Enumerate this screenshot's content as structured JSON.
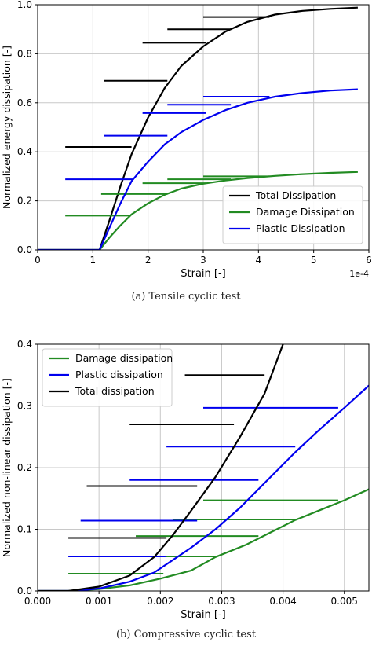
{
  "captions": [
    "(a) Tensile cyclic test",
    "(b) Compressive cyclic test"
  ],
  "chart_data": [
    {
      "type": "line",
      "xlabel": "Strain [-]",
      "ylabel": "Normalized energy dissipation [-]",
      "x_offset_label": "1e-4",
      "xlim": [
        0,
        6
      ],
      "ylim": [
        0,
        1.0
      ],
      "xticks": [
        "0",
        "1",
        "2",
        "3",
        "4",
        "5",
        "6"
      ],
      "yticks": [
        "0.0",
        "0.2",
        "0.4",
        "0.6",
        "0.8",
        "1.0"
      ],
      "legend_position": "lower-right",
      "grid": true,
      "series": [
        {
          "name": "Total Dissipation",
          "color": "#000000",
          "x": [
            0,
            1.12,
            1.3,
            1.5,
            1.7,
            2.0,
            2.3,
            2.6,
            3.0,
            3.4,
            3.8,
            4.3,
            4.8,
            5.3,
            5.8
          ],
          "y": [
            0,
            0,
            0.12,
            0.26,
            0.39,
            0.54,
            0.66,
            0.75,
            0.83,
            0.89,
            0.93,
            0.96,
            0.975,
            0.983,
            0.988
          ],
          "hlines": [
            {
              "y": 0.42,
              "x": [
                0.5,
                1.7
              ]
            },
            {
              "y": 0.69,
              "x": [
                1.2,
                2.35
              ]
            },
            {
              "y": 0.845,
              "x": [
                1.9,
                3.05
              ]
            },
            {
              "y": 0.9,
              "x": [
                2.35,
                3.5
              ]
            },
            {
              "y": 0.95,
              "x": [
                3.0,
                4.2
              ]
            }
          ]
        },
        {
          "name": "Damage Dissipation",
          "color": "#228b22",
          "x": [
            0,
            1.12,
            1.3,
            1.5,
            1.7,
            2.0,
            2.3,
            2.6,
            3.0,
            3.4,
            3.8,
            4.3,
            4.8,
            5.3,
            5.8
          ],
          "y": [
            0,
            0,
            0.05,
            0.1,
            0.145,
            0.19,
            0.225,
            0.25,
            0.27,
            0.283,
            0.293,
            0.302,
            0.309,
            0.314,
            0.318
          ],
          "hlines": [
            {
              "y": 0.14,
              "x": [
                0.5,
                1.65
              ]
            },
            {
              "y": 0.228,
              "x": [
                1.15,
                2.35
              ]
            },
            {
              "y": 0.272,
              "x": [
                1.9,
                3.05
              ]
            },
            {
              "y": 0.288,
              "x": [
                2.35,
                3.5
              ]
            },
            {
              "y": 0.3,
              "x": [
                3.0,
                4.2
              ]
            }
          ]
        },
        {
          "name": "Plastic Dissipation",
          "color": "#0000ee",
          "x": [
            0,
            1.12,
            1.3,
            1.5,
            1.7,
            2.0,
            2.3,
            2.6,
            3.0,
            3.4,
            3.8,
            4.3,
            4.8,
            5.3,
            5.8
          ],
          "y": [
            0,
            0,
            0.09,
            0.19,
            0.28,
            0.36,
            0.43,
            0.48,
            0.53,
            0.57,
            0.6,
            0.625,
            0.64,
            0.65,
            0.655
          ],
          "hlines": [
            {
              "y": 0.288,
              "x": [
                0.5,
                1.72
              ]
            },
            {
              "y": 0.466,
              "x": [
                1.2,
                2.35
              ]
            },
            {
              "y": 0.558,
              "x": [
                1.9,
                3.05
              ]
            },
            {
              "y": 0.592,
              "x": [
                2.35,
                3.5
              ]
            },
            {
              "y": 0.625,
              "x": [
                3.0,
                4.2
              ]
            }
          ]
        }
      ]
    },
    {
      "type": "line",
      "xlabel": "Strain [-]",
      "ylabel": "Normalized non-linear dissipation [-]",
      "xlim": [
        0,
        0.0054
      ],
      "ylim": [
        0,
        0.4
      ],
      "xticks": [
        "0.000",
        "0.001",
        "0.002",
        "0.003",
        "0.004",
        "0.005"
      ],
      "yticks": [
        "0.0",
        "0.1",
        "0.2",
        "0.3",
        "0.4"
      ],
      "legend_position": "top-left",
      "grid": true,
      "series": [
        {
          "name": "Damage dissipation",
          "color": "#228b22",
          "x": [
            0.0,
            0.0005,
            0.001,
            0.0015,
            0.002,
            0.0025,
            0.0029,
            0.0034,
            0.0038,
            0.0042,
            0.0046,
            0.005,
            0.0054
          ],
          "y": [
            0,
            0.0,
            0.003,
            0.009,
            0.02,
            0.033,
            0.055,
            0.075,
            0.095,
            0.115,
            0.131,
            0.147,
            0.165
          ],
          "hlines": [
            {
              "y": 0.028,
              "x": [
                0.0005,
                0.00205
              ]
            },
            {
              "y": 0.056,
              "x": [
                0.0009,
                0.0029
              ]
            },
            {
              "y": 0.089,
              "x": [
                0.0016,
                0.0036
              ]
            },
            {
              "y": 0.116,
              "x": [
                0.0022,
                0.0042
              ]
            },
            {
              "y": 0.147,
              "x": [
                0.0027,
                0.0049
              ]
            }
          ]
        },
        {
          "name": "Plastic dissipation",
          "color": "#0000ee",
          "x": [
            0.0,
            0.0006,
            0.001,
            0.0015,
            0.0019,
            0.0022,
            0.0025,
            0.0029,
            0.0033,
            0.0037,
            0.0042,
            0.0046,
            0.005,
            0.0054
          ],
          "y": [
            0,
            0.0,
            0.004,
            0.015,
            0.03,
            0.05,
            0.07,
            0.1,
            0.135,
            0.175,
            0.225,
            0.262,
            0.297,
            0.333
          ],
          "hlines": [
            {
              "y": 0.056,
              "x": [
                0.0005,
                0.0021
              ]
            },
            {
              "y": 0.114,
              "x": [
                0.0007,
                0.0026
              ]
            },
            {
              "y": 0.18,
              "x": [
                0.0015,
                0.0036
              ]
            },
            {
              "y": 0.234,
              "x": [
                0.0021,
                0.0042
              ]
            },
            {
              "y": 0.297,
              "x": [
                0.0027,
                0.0049
              ]
            }
          ]
        },
        {
          "name": "Total dissipation",
          "color": "#000000",
          "x": [
            0.0,
            0.0005,
            0.001,
            0.0015,
            0.0019,
            0.0022,
            0.0025,
            0.0029,
            0.0033,
            0.0037,
            0.004
          ],
          "y": [
            0,
            0.0,
            0.007,
            0.025,
            0.055,
            0.09,
            0.13,
            0.185,
            0.25,
            0.32,
            0.4
          ],
          "hlines": [
            {
              "y": 0.086,
              "x": [
                0.0005,
                0.0021
              ]
            },
            {
              "y": 0.17,
              "x": [
                0.0008,
                0.0026
              ]
            },
            {
              "y": 0.27,
              "x": [
                0.0015,
                0.0032
              ]
            },
            {
              "y": 0.35,
              "x": [
                0.0024,
                0.0037
              ]
            }
          ]
        }
      ]
    }
  ]
}
